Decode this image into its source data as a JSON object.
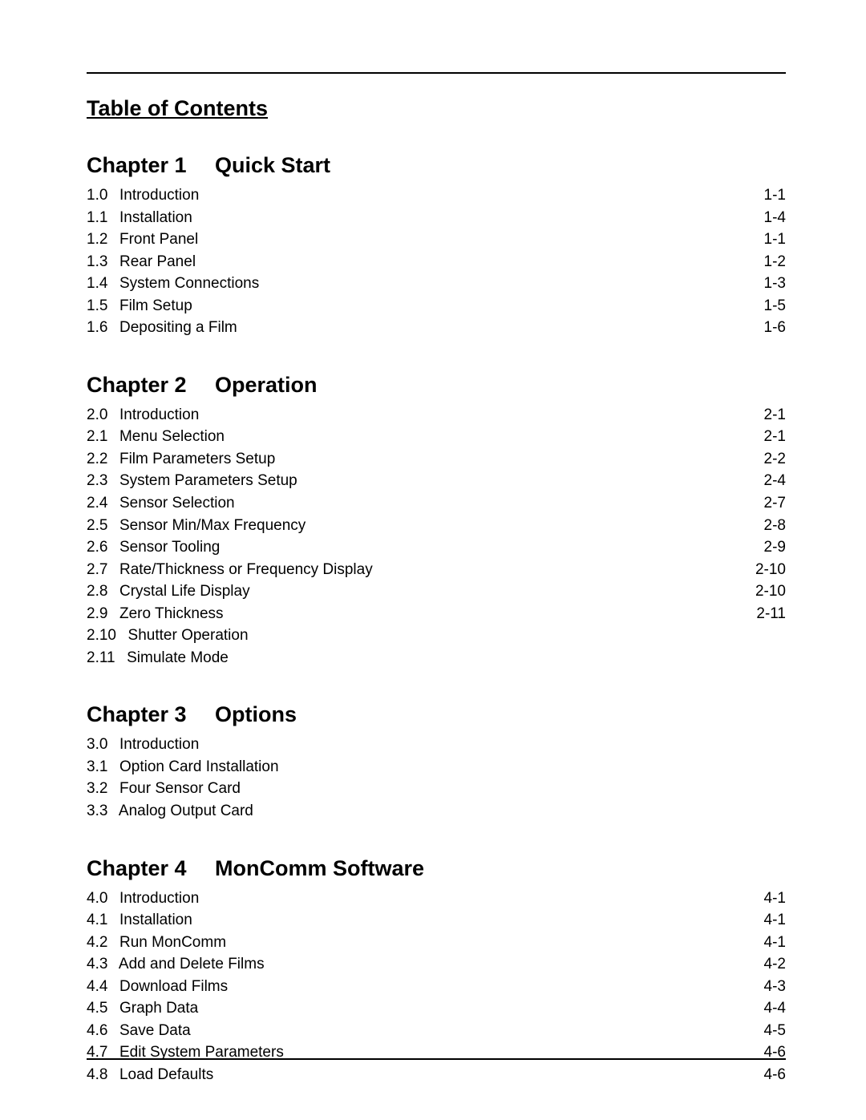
{
  "title": "Table of Contents",
  "chapters": [
    {
      "chapter_label": "Chapter 1",
      "chapter_title": "Quick Start",
      "entries": [
        {
          "num": "1.0",
          "label": "Introduction",
          "page": "1-1"
        },
        {
          "num": "1.1",
          "label": "Installation",
          "page": "1-4"
        },
        {
          "num": "1.2",
          "label": "Front Panel",
          "page": "1-1"
        },
        {
          "num": "1.3",
          "label": "Rear Panel",
          "page": "1-2"
        },
        {
          "num": "1.4",
          "label": "System Connections",
          "page": "1-3"
        },
        {
          "num": "1.5",
          "label": "Film Setup",
          "page": "1-5"
        },
        {
          "num": "1.6",
          "label": "Depositing a Film",
          "page": "1-6"
        }
      ]
    },
    {
      "chapter_label": "Chapter 2",
      "chapter_title": "Operation",
      "entries": [
        {
          "num": "2.0",
          "label": "Introduction",
          "page": "2-1"
        },
        {
          "num": "2.1",
          "label": "Menu Selection",
          "page": "2-1"
        },
        {
          "num": "2.2",
          "label": "Film Parameters Setup",
          "page": "2-2"
        },
        {
          "num": "2.3",
          "label": "System Parameters Setup",
          "page": "2-4"
        },
        {
          "num": "2.4",
          "label": "Sensor Selection",
          "page": "2-7"
        },
        {
          "num": "2.5",
          "label": "Sensor Min/Max Frequency",
          "page": "2-8"
        },
        {
          "num": "2.6",
          "label": "Sensor Tooling",
          "page": "2-9"
        },
        {
          "num": "2.7",
          "label": "Rate/Thickness or Frequency Display",
          "page": "2-10"
        },
        {
          "num": "2.8",
          "label": "Crystal Life Display",
          "page": "2-10"
        },
        {
          "num": "2.9",
          "label": "Zero Thickness",
          "page": "2-11"
        },
        {
          "num": "2.10",
          "label": "Shutter Operation",
          "page": ""
        },
        {
          "num": "2.11",
          "label": "Simulate Mode",
          "page": ""
        }
      ]
    },
    {
      "chapter_label": "Chapter 3",
      "chapter_title": "Options",
      "entries": [
        {
          "num": "3.0",
          "label": "Introduction",
          "page": ""
        },
        {
          "num": "3.1",
          "label": "Option Card Installation",
          "page": ""
        },
        {
          "num": "3.2",
          "label": "Four Sensor Card",
          "page": ""
        },
        {
          "num": "3.3",
          "label": "Analog Output Card",
          "page": ""
        }
      ]
    },
    {
      "chapter_label": "Chapter 4",
      "chapter_title": "MonComm Software",
      "entries": [
        {
          "num": "4.0",
          "label": "Introduction",
          "page": "4-1"
        },
        {
          "num": "4.1",
          "label": "Installation",
          "page": "4-1"
        },
        {
          "num": "4.2",
          "label": "Run MonComm",
          "page": "4-1"
        },
        {
          "num": "4.3",
          "label": "Add and Delete Films",
          "page": "4-2"
        },
        {
          "num": "4.4",
          "label": "Download Films",
          "page": "4-3"
        },
        {
          "num": "4.5",
          "label": "Graph Data",
          "page": "4-4"
        },
        {
          "num": "4.6",
          "label": "Save Data",
          "page": "4-5"
        },
        {
          "num": "4.7",
          "label": "Edit System Parameters",
          "page": "4-6"
        },
        {
          "num": "4.8",
          "label": "Load Defaults",
          "page": "4-6"
        }
      ]
    }
  ]
}
